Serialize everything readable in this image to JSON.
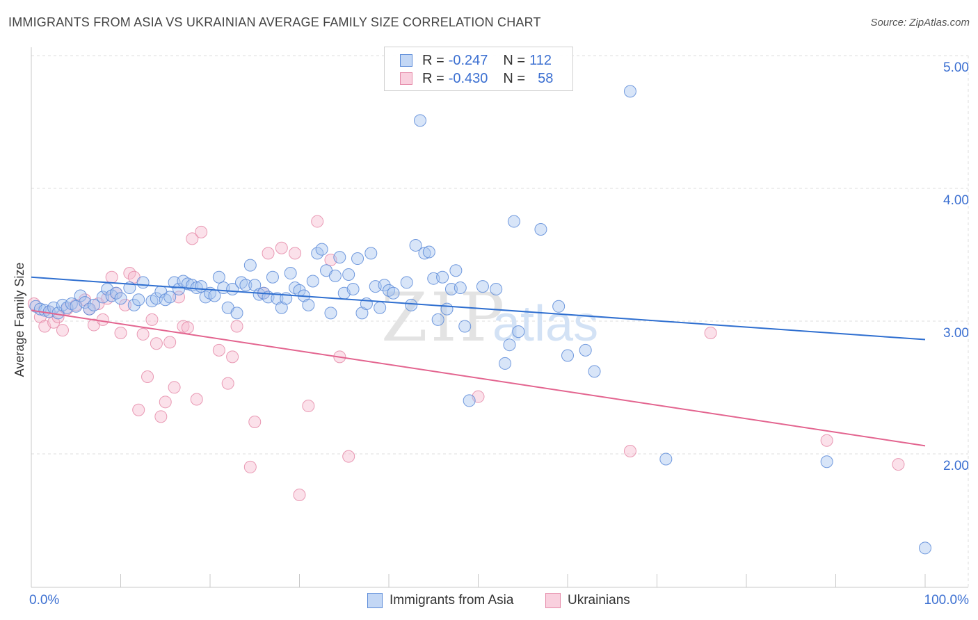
{
  "header": {
    "title": "IMMIGRANTS FROM ASIA VS UKRAINIAN AVERAGE FAMILY SIZE CORRELATION CHART",
    "source": "Source: ZipAtlas.com"
  },
  "legend_stats": {
    "series1": {
      "r_label": "R =",
      "r_value": "-0.247",
      "n_label": "N =",
      "n_value": "112"
    },
    "series2": {
      "r_label": "R =",
      "r_value": "-0.430",
      "n_label": "N =",
      "n_value": "58"
    }
  },
  "watermark": {
    "zip": "ZIP",
    "atlas": "atlas"
  },
  "colors": {
    "blue_fill": "#a9c6f0",
    "blue_stroke": "#5a8ad8",
    "blue_line": "#2f6fd0",
    "pink_fill": "#f6bcd0",
    "pink_stroke": "#e589a8",
    "pink_line": "#e3648f",
    "tick_label": "#3b6fd1",
    "grid": "#dcdcdc"
  },
  "chart_data": {
    "type": "scatter",
    "title": "IMMIGRANTS FROM ASIA VS UKRAINIAN AVERAGE FAMILY SIZE CORRELATION CHART",
    "xlabel": "",
    "ylabel": "Average Family Size",
    "xlim": [
      0,
      100
    ],
    "ylim": [
      1.0,
      5.1
    ],
    "x_tick_labels": [
      "0.0%",
      "100.0%"
    ],
    "y_ticks": [
      2.0,
      3.0,
      4.0,
      5.0
    ],
    "y_tick_labels": [
      "2.00",
      "3.00",
      "4.00",
      "5.00"
    ],
    "grid": true,
    "legend_position": "bottom",
    "series": [
      {
        "name": "Immigrants from Asia",
        "color": "#5a8ad8",
        "trend": {
          "x": [
            0,
            100
          ],
          "y": [
            3.42,
            2.95
          ]
        },
        "points": [
          [
            0.5,
            3.2
          ],
          [
            1.0,
            3.18
          ],
          [
            1.5,
            3.17
          ],
          [
            2.0,
            3.16
          ],
          [
            2.5,
            3.19
          ],
          [
            3.0,
            3.15
          ],
          [
            3.5,
            3.21
          ],
          [
            4.0,
            3.19
          ],
          [
            4.5,
            3.22
          ],
          [
            5.0,
            3.2
          ],
          [
            5.5,
            3.28
          ],
          [
            6.0,
            3.23
          ],
          [
            6.5,
            3.18
          ],
          [
            7.0,
            3.21
          ],
          [
            8.0,
            3.27
          ],
          [
            8.5,
            3.33
          ],
          [
            9.0,
            3.28
          ],
          [
            9.5,
            3.3
          ],
          [
            10.0,
            3.26
          ],
          [
            11.0,
            3.34
          ],
          [
            11.5,
            3.21
          ],
          [
            12.0,
            3.25
          ],
          [
            12.5,
            3.38
          ],
          [
            13.5,
            3.24
          ],
          [
            14.0,
            3.26
          ],
          [
            14.5,
            3.31
          ],
          [
            15.0,
            3.25
          ],
          [
            15.5,
            3.27
          ],
          [
            16.0,
            3.38
          ],
          [
            16.5,
            3.33
          ],
          [
            17.0,
            3.39
          ],
          [
            17.5,
            3.37
          ],
          [
            18.0,
            3.36
          ],
          [
            18.5,
            3.34
          ],
          [
            19.0,
            3.35
          ],
          [
            19.5,
            3.27
          ],
          [
            20.0,
            3.3
          ],
          [
            20.5,
            3.28
          ],
          [
            21.0,
            3.42
          ],
          [
            21.5,
            3.34
          ],
          [
            22.0,
            3.19
          ],
          [
            22.5,
            3.33
          ],
          [
            23.0,
            3.15
          ],
          [
            23.5,
            3.38
          ],
          [
            24.0,
            3.36
          ],
          [
            24.5,
            3.51
          ],
          [
            25.0,
            3.36
          ],
          [
            25.5,
            3.29
          ],
          [
            26.0,
            3.3
          ],
          [
            26.5,
            3.27
          ],
          [
            27.0,
            3.42
          ],
          [
            27.5,
            3.26
          ],
          [
            28.0,
            3.19
          ],
          [
            28.5,
            3.26
          ],
          [
            29.0,
            3.45
          ],
          [
            29.5,
            3.34
          ],
          [
            30.0,
            3.32
          ],
          [
            30.5,
            3.28
          ],
          [
            31.0,
            3.21
          ],
          [
            31.5,
            3.39
          ],
          [
            32.0,
            3.6
          ],
          [
            32.5,
            3.63
          ],
          [
            33.0,
            3.47
          ],
          [
            33.5,
            3.15
          ],
          [
            34.0,
            3.43
          ],
          [
            34.5,
            3.57
          ],
          [
            35.0,
            3.3
          ],
          [
            35.5,
            3.44
          ],
          [
            36.0,
            3.33
          ],
          [
            36.5,
            3.56
          ],
          [
            37.0,
            3.15
          ],
          [
            37.5,
            3.22
          ],
          [
            38.0,
            3.6
          ],
          [
            38.5,
            3.35
          ],
          [
            39.0,
            3.19
          ],
          [
            39.5,
            3.36
          ],
          [
            40.0,
            3.32
          ],
          [
            40.5,
            3.3
          ],
          [
            42.0,
            3.38
          ],
          [
            42.5,
            3.21
          ],
          [
            43.0,
            3.66
          ],
          [
            43.5,
            4.6
          ],
          [
            44.0,
            3.6
          ],
          [
            44.5,
            3.61
          ],
          [
            45.0,
            3.41
          ],
          [
            45.5,
            3.1
          ],
          [
            46.0,
            3.42
          ],
          [
            46.5,
            3.18
          ],
          [
            47.0,
            3.33
          ],
          [
            47.5,
            3.47
          ],
          [
            48.0,
            3.34
          ],
          [
            48.5,
            3.05
          ],
          [
            49.0,
            2.49
          ],
          [
            50.5,
            3.35
          ],
          [
            52.0,
            3.33
          ],
          [
            53.0,
            2.77
          ],
          [
            53.5,
            2.91
          ],
          [
            54.0,
            3.84
          ],
          [
            54.5,
            3.01
          ],
          [
            57.0,
            3.78
          ],
          [
            59.0,
            3.2
          ],
          [
            60.0,
            2.83
          ],
          [
            62.0,
            2.87
          ],
          [
            63.0,
            2.71
          ],
          [
            67.0,
            4.82
          ],
          [
            71.0,
            2.05
          ],
          [
            89.0,
            2.03
          ],
          [
            100.0,
            1.38
          ]
        ]
      },
      {
        "name": "Ukrainians",
        "color": "#e589a8",
        "trend": {
          "x": [
            0,
            100
          ],
          "y": [
            3.17,
            2.15
          ]
        },
        "points": [
          [
            0.3,
            3.22
          ],
          [
            1.0,
            3.12
          ],
          [
            1.5,
            3.05
          ],
          [
            2.0,
            3.16
          ],
          [
            2.5,
            3.08
          ],
          [
            3.0,
            3.12
          ],
          [
            3.5,
            3.02
          ],
          [
            4.0,
            3.18
          ],
          [
            5.0,
            3.21
          ],
          [
            6.0,
            3.25
          ],
          [
            6.5,
            3.18
          ],
          [
            7.0,
            3.06
          ],
          [
            7.5,
            3.22
          ],
          [
            8.0,
            3.1
          ],
          [
            8.5,
            3.26
          ],
          [
            9.0,
            3.42
          ],
          [
            9.5,
            3.3
          ],
          [
            10.0,
            3.0
          ],
          [
            10.5,
            3.21
          ],
          [
            11.0,
            3.45
          ],
          [
            11.5,
            3.42
          ],
          [
            12.0,
            2.42
          ],
          [
            12.5,
            2.99
          ],
          [
            13.0,
            2.67
          ],
          [
            13.5,
            3.1
          ],
          [
            14.0,
            2.92
          ],
          [
            14.5,
            2.37
          ],
          [
            15.0,
            2.48
          ],
          [
            15.5,
            2.93
          ],
          [
            16.0,
            2.59
          ],
          [
            16.5,
            3.27
          ],
          [
            17.0,
            3.05
          ],
          [
            17.5,
            3.04
          ],
          [
            18.0,
            3.71
          ],
          [
            18.5,
            2.5
          ],
          [
            19.0,
            3.76
          ],
          [
            21.0,
            2.87
          ],
          [
            22.0,
            2.62
          ],
          [
            22.5,
            2.82
          ],
          [
            23.0,
            3.05
          ],
          [
            24.5,
            1.99
          ],
          [
            25.0,
            2.33
          ],
          [
            26.0,
            3.3
          ],
          [
            26.5,
            3.6
          ],
          [
            28.0,
            3.64
          ],
          [
            29.5,
            3.6
          ],
          [
            30.0,
            1.78
          ],
          [
            31.0,
            2.45
          ],
          [
            32.0,
            3.84
          ],
          [
            33.5,
            3.55
          ],
          [
            34.5,
            2.82
          ],
          [
            35.5,
            2.07
          ],
          [
            50.0,
            2.52
          ],
          [
            67.0,
            2.11
          ],
          [
            76.0,
            3.0
          ],
          [
            89.0,
            2.19
          ],
          [
            97.0,
            2.01
          ]
        ]
      }
    ]
  }
}
